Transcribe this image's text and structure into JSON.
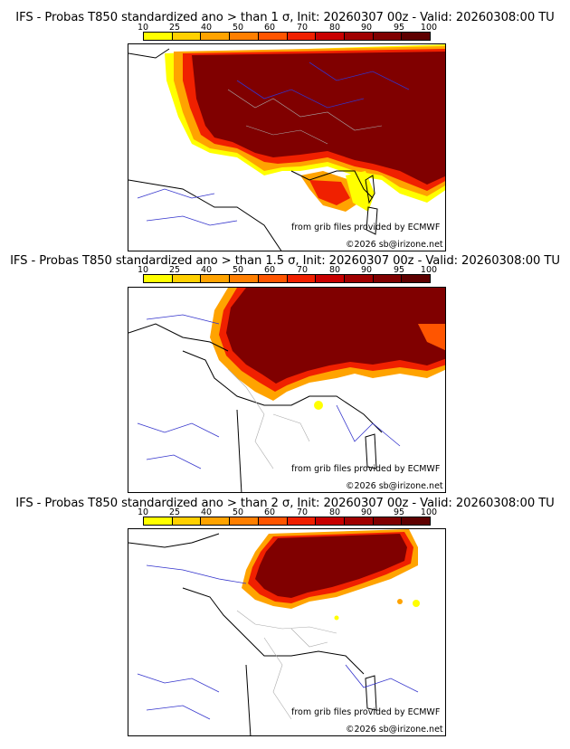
{
  "colors": {
    "scale": [
      "#ffff00",
      "#ffd000",
      "#ffa300",
      "#ff7f00",
      "#ff5500",
      "#f02000",
      "#c80000",
      "#a00000",
      "#800000",
      "#5e0000"
    ],
    "coast": "#000000",
    "river": "#3333cc",
    "border": "#aaaaaa"
  },
  "colorbar": {
    "ticks": [
      "10",
      "25",
      "40",
      "50",
      "60",
      "70",
      "80",
      "90",
      "95",
      "100"
    ]
  },
  "panels": [
    {
      "title": "IFS - Probas T850  standardized ano > than 1 σ, Init: 20260307 00z - Valid: 20260308:00 TU",
      "credit1": "from grib files provided by ECMWF",
      "credit2": "©2026 sb@irizone.net"
    },
    {
      "title": "IFS - Probas T850  standardized ano > than 1.5 σ, Init: 20260307 00z - Valid: 20260308:00 TU",
      "credit1": "from grib files provided by ECMWF",
      "credit2": "©2026 sb@irizone.net"
    },
    {
      "title": "IFS - Probas T850  standardized ano > than 2 σ, Init: 20260307 00z - Valid: 20260308:00 TU",
      "credit1": "from grib files provided by ECMWF",
      "credit2": "©2026 sb@irizone.net"
    }
  ]
}
